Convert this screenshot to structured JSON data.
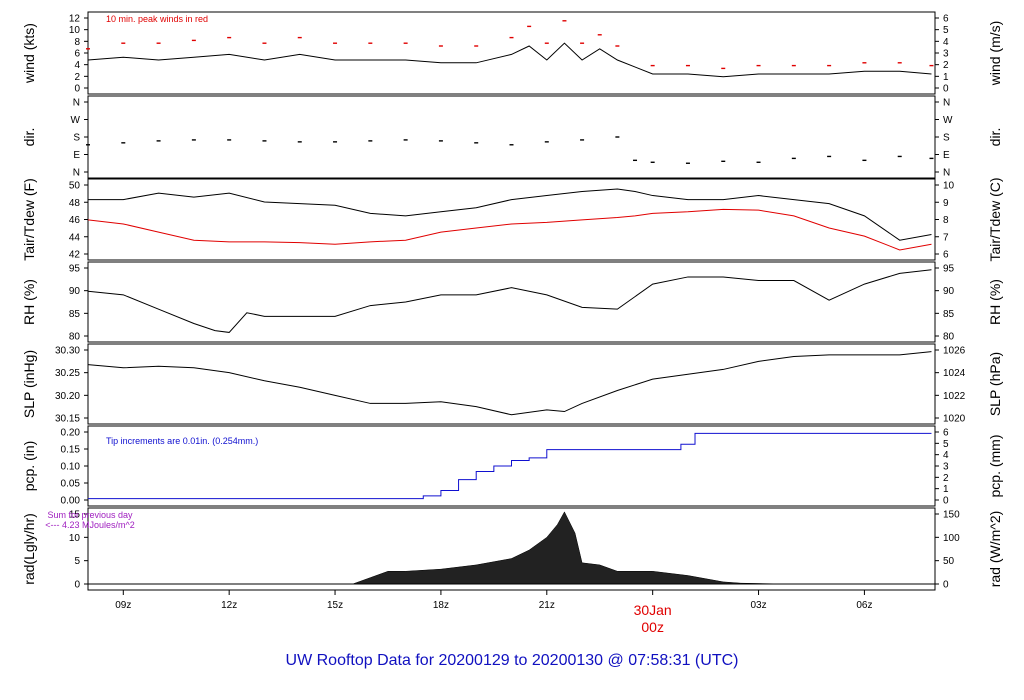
{
  "page": {
    "title": "UW Rooftop Data for 20200129  to  20200130 @ 07:58:31  (UTC)"
  },
  "xaxis": {
    "tick_labels": [
      "09z",
      "12z",
      "15z",
      "18z",
      "21z",
      "",
      "03z",
      "06z"
    ],
    "midnight_label": [
      "30Jan",
      "00z"
    ],
    "hours_from_start_of_window": [
      1,
      4,
      7,
      10,
      13,
      16,
      19,
      22
    ]
  },
  "colors": {
    "frame": "#000000",
    "line": "#000000",
    "peak": "#e00000",
    "dewpoint": "#e00000",
    "precip": "#1010d0",
    "title": "#1010c0",
    "note_rad": "#a020c0",
    "midnight_label": "#e00000"
  },
  "panels": [
    {
      "id": "wind",
      "type": "line",
      "left_label": "wind (kts)",
      "right_label": "wind (m/s)",
      "left_ticks": [
        "0",
        "2",
        "4",
        "6",
        "8",
        "10",
        "12"
      ],
      "right_ticks": [
        "0",
        "1",
        "2",
        "3",
        "4",
        "5",
        "6"
      ],
      "annotation": "10 min. peak winds in red",
      "annotation_color": "#e00000",
      "y_range_kts": [
        0,
        12.5
      ],
      "series": [
        {
          "name": "wind speed (kts)",
          "x_hours": [
            0,
            1,
            2,
            3,
            4,
            5,
            6,
            7,
            8,
            9,
            10,
            11,
            12,
            12.5,
            13,
            13.5,
            14,
            14.5,
            15,
            16,
            17,
            18,
            19,
            20,
            21,
            22,
            23,
            23.9
          ],
          "y": [
            5,
            5.5,
            5,
            5.5,
            6,
            5,
            6,
            5,
            5,
            5,
            4.5,
            4.5,
            6,
            7.5,
            5,
            8,
            5,
            7,
            5,
            2.5,
            2.5,
            2,
            2.5,
            2.5,
            2.5,
            3,
            3,
            2.5
          ]
        },
        {
          "name": "10 min. peak wind (kts)",
          "x_hours": [
            0,
            1,
            2,
            3,
            4,
            5,
            6,
            7,
            8,
            9,
            10,
            11,
            12,
            12.5,
            13,
            13.5,
            14,
            14.5,
            15,
            16,
            17,
            18,
            19,
            20,
            21,
            22,
            23,
            23.9
          ],
          "y": [
            7,
            8,
            8,
            8.5,
            9,
            8,
            9,
            8,
            8,
            8,
            7.5,
            7.5,
            9,
            11,
            8,
            12,
            8,
            9.5,
            7.5,
            4,
            4,
            3.5,
            4,
            4,
            4,
            4.5,
            4.5,
            4
          ]
        }
      ]
    },
    {
      "id": "dir",
      "type": "scatter",
      "left_label": "dir.",
      "right_label": "dir.",
      "left_ticks": [
        "N",
        "E",
        "S",
        "W",
        "N"
      ],
      "right_ticks": [
        "N",
        "E",
        "S",
        "W",
        "N"
      ],
      "y_range_deg": [
        0,
        360
      ],
      "series": [
        {
          "name": "wind direction (deg)",
          "x_hours": [
            0,
            1,
            2,
            3,
            4,
            5,
            6,
            7,
            8,
            9,
            10,
            11,
            12,
            13,
            14,
            15,
            15.5,
            16,
            17,
            18,
            19,
            20,
            21,
            22,
            23,
            23.9
          ],
          "y": [
            140,
            150,
            160,
            165,
            165,
            160,
            155,
            155,
            160,
            165,
            160,
            150,
            140,
            155,
            165,
            180,
            60,
            50,
            45,
            55,
            50,
            70,
            80,
            60,
            80,
            70
          ]
        }
      ]
    },
    {
      "id": "temp",
      "type": "line",
      "left_label": "Tair/Tdew (F)",
      "right_label": "Tair/Tdew (C)",
      "left_ticks": [
        "42",
        "44",
        "46",
        "48",
        "50"
      ],
      "right_ticks": [
        "6",
        "7",
        "8",
        "9",
        "10"
      ],
      "y_range_f": [
        41.8,
        50.3
      ],
      "series": [
        {
          "name": "Tair (F)",
          "x_hours": [
            0,
            1,
            2,
            3,
            4,
            5,
            6,
            7,
            8,
            9,
            10,
            11,
            12,
            13,
            14,
            15,
            15.5,
            16,
            17,
            18,
            19,
            20,
            21,
            22,
            23,
            23.9
          ],
          "y": [
            48.5,
            48.5,
            49.3,
            48.8,
            49.3,
            48.2,
            48,
            47.8,
            46.8,
            46.5,
            47,
            47.5,
            48.5,
            49,
            49.5,
            49.8,
            49.5,
            49,
            48.5,
            48.5,
            49,
            48.5,
            48,
            46.5,
            43.5,
            44.2
          ]
        },
        {
          "name": "Tdew (F)",
          "x_hours": [
            0,
            1,
            2,
            3,
            4,
            5,
            6,
            7,
            8,
            9,
            10,
            11,
            12,
            13,
            14,
            15,
            15.5,
            16,
            17,
            18,
            19,
            20,
            21,
            22,
            23,
            23.9
          ],
          "y": [
            46,
            45.5,
            44.5,
            43.5,
            43.3,
            43.3,
            43.2,
            43,
            43.3,
            43.5,
            44.5,
            45,
            45.5,
            45.7,
            46,
            46.3,
            46.5,
            46.8,
            47,
            47.3,
            47.2,
            46.5,
            45,
            44,
            42.3,
            43
          ]
        }
      ]
    },
    {
      "id": "rh",
      "type": "line",
      "left_label": "RH (%)",
      "right_label": "RH (%)",
      "left_ticks": [
        "80",
        "85",
        "90",
        "95"
      ],
      "right_ticks": [
        "80",
        "85",
        "90",
        "95"
      ],
      "y_range": [
        78.5,
        97.5
      ],
      "series": [
        {
          "name": "RH (%)",
          "x_hours": [
            0,
            1,
            2,
            3,
            3.6,
            4,
            4.5,
            5,
            6,
            7,
            8,
            9,
            10,
            11,
            12,
            13,
            14,
            15,
            16,
            17,
            18,
            19,
            20,
            21,
            22,
            23,
            23.9
          ],
          "y": [
            91,
            90,
            86,
            82,
            80,
            79.5,
            85,
            84,
            84,
            84,
            87,
            88,
            90,
            90,
            92,
            90,
            86.5,
            86,
            93,
            95,
            95,
            94,
            94,
            88.5,
            93,
            96,
            97
          ]
        }
      ]
    },
    {
      "id": "slp",
      "type": "line",
      "left_label": "SLP (inHg)",
      "right_label": "SLP (hPa)",
      "left_ticks": [
        "30.15",
        "30.20",
        "30.25",
        "30.30"
      ],
      "right_ticks": [
        "1020",
        "1022",
        "1024",
        "1026"
      ],
      "y_range_inhg": [
        30.115,
        30.325
      ],
      "series": [
        {
          "name": "SLP (inHg)",
          "x_hours": [
            0,
            1,
            2,
            3,
            4,
            5,
            6,
            7,
            8,
            9,
            10,
            11,
            12,
            13,
            13.5,
            14,
            15,
            16,
            17,
            18,
            19,
            20,
            21,
            22,
            23,
            23.9
          ],
          "y": [
            30.28,
            30.27,
            30.275,
            30.27,
            30.255,
            30.23,
            30.21,
            30.185,
            30.16,
            30.16,
            30.165,
            30.15,
            30.125,
            30.14,
            30.135,
            30.16,
            30.2,
            30.235,
            30.25,
            30.265,
            30.29,
            30.305,
            30.31,
            30.31,
            30.31,
            30.32
          ]
        }
      ]
    },
    {
      "id": "pcp",
      "type": "step",
      "left_label": "pcp. (in)",
      "right_label": "pcp. (mm)",
      "left_ticks": [
        "0.00",
        "0.05",
        "0.10",
        "0.15",
        "0.20"
      ],
      "right_ticks": [
        "0",
        "1",
        "2",
        "3",
        "4",
        "5",
        "6"
      ],
      "annotation": "Tip increments are 0.01in. (0.254mm.)",
      "annotation_color": "#1010d0",
      "y_range_in": [
        -0.005,
        0.245
      ],
      "series": [
        {
          "name": "accumulated precipitation (in)",
          "x_hours": [
            0,
            8.7,
            9.5,
            10,
            10.5,
            11,
            11.5,
            12,
            12.5,
            13,
            14,
            15,
            16.5,
            16.8,
            17.2,
            23.9
          ],
          "y": [
            0,
            0,
            0.01,
            0.03,
            0.07,
            0.1,
            0.12,
            0.14,
            0.15,
            0.18,
            0.18,
            0.18,
            0.18,
            0.2,
            0.24,
            0.24
          ]
        }
      ]
    },
    {
      "id": "rad",
      "type": "area",
      "left_label": "rad(Lgly/hr)",
      "right_label": "rad (W/m^2)",
      "left_ticks": [
        "0",
        "5",
        "10",
        "15"
      ],
      "right_ticks": [
        "0",
        "50",
        "100",
        "150"
      ],
      "note": [
        "Sum for previous day",
        "<--- 4.23 MJoules/m^2"
      ],
      "note_color": "#a020c0",
      "y_range": [
        0,
        16.5
      ],
      "series": [
        {
          "name": "solar radiation (Lgly/hr)",
          "x_hours": [
            7.5,
            8,
            8.5,
            9,
            10,
            11,
            12,
            12.5,
            13,
            13.3,
            13.5,
            13.8,
            14,
            14.5,
            15,
            16,
            17,
            18,
            18.5,
            19.8
          ],
          "y": [
            0,
            1.5,
            3,
            3,
            3.5,
            4.5,
            6,
            8,
            11,
            14,
            17,
            12,
            5,
            4.5,
            3,
            3,
            2,
            0.5,
            0.2,
            0
          ]
        }
      ]
    }
  ]
}
